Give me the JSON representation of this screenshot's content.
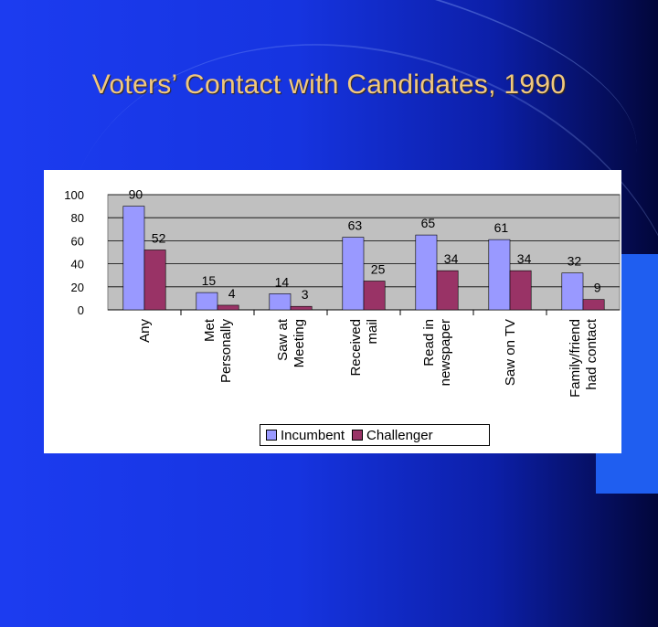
{
  "slide": {
    "title": "Voters’ Contact with Candidates, 1990"
  },
  "colors": {
    "incumbent": "#9999ff",
    "challenger": "#993366",
    "plot_background": "#c0c0c0",
    "title": "#f0c880"
  },
  "chart_data": {
    "type": "bar",
    "title": "",
    "xlabel": "",
    "ylabel": "",
    "ylim": [
      0,
      100
    ],
    "yticks": [
      0,
      20,
      40,
      60,
      80,
      100
    ],
    "grid": true,
    "legend_position": "bottom",
    "categories": [
      "Any",
      "Met Personally",
      "Saw at Meeting",
      "Received mail",
      "Read in newspaper",
      "Saw on TV",
      "Family/friend had contact"
    ],
    "category_lines": [
      [
        "Any"
      ],
      [
        "Met",
        "Personally"
      ],
      [
        "Saw at",
        "Meeting"
      ],
      [
        "Received",
        "mail"
      ],
      [
        "Read in",
        "newspaper"
      ],
      [
        "Saw on TV"
      ],
      [
        "Family/friend",
        "had contact"
      ]
    ],
    "series": [
      {
        "name": "Incumbent",
        "values": [
          90,
          15,
          14,
          63,
          65,
          61,
          32
        ]
      },
      {
        "name": "Challenger",
        "values": [
          52,
          4,
          3,
          25,
          34,
          34,
          9
        ]
      }
    ]
  }
}
